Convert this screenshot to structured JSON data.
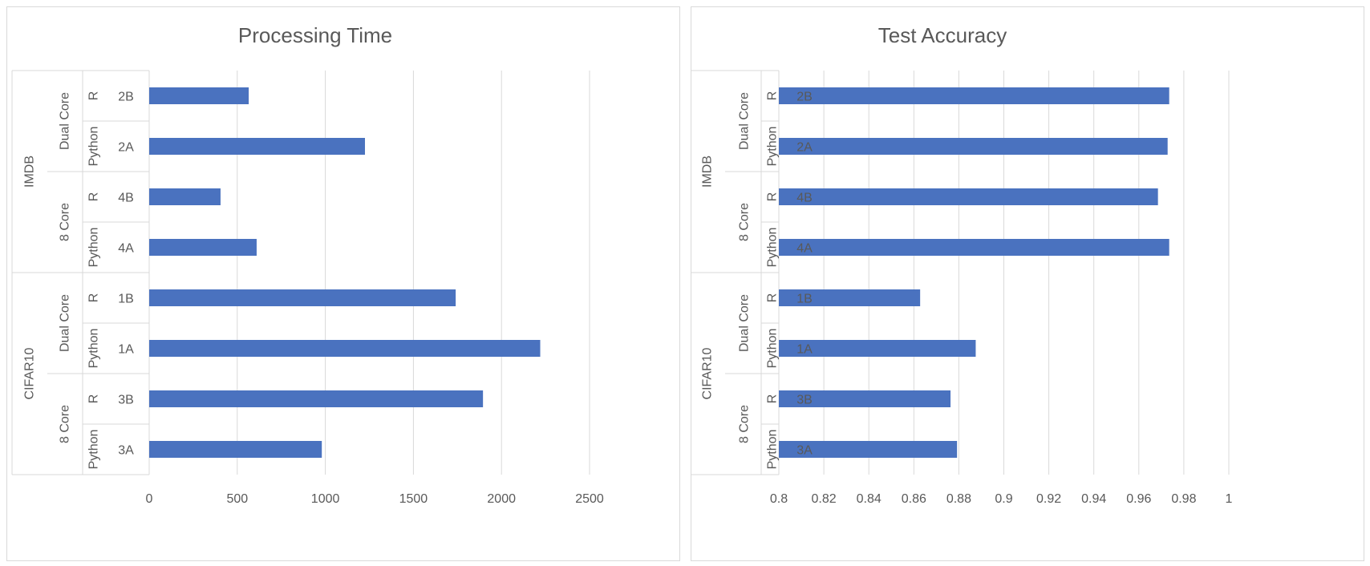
{
  "chart_data": [
    {
      "type": "bar",
      "orientation": "horizontal",
      "title": "Processing Time",
      "xlim": [
        0,
        2500
      ],
      "xticks": [
        "0",
        "500",
        "1000",
        "1500",
        "2000",
        "2500"
      ],
      "grid": true,
      "bar_color": "#4a72bf",
      "categories": [
        "2B",
        "2A",
        "4B",
        "4A",
        "1B",
        "1A",
        "3B",
        "3A"
      ],
      "languages": [
        "R",
        "Python",
        "R",
        "Python",
        "R",
        "Python",
        "R",
        "Python"
      ],
      "cores": [
        "Dual Core",
        "8 Core",
        "Dual Core",
        "8 Core"
      ],
      "datasets": [
        "IMDB",
        "CIFAR10"
      ],
      "values": [
        565,
        1225,
        405,
        610,
        1740,
        2220,
        1895,
        980
      ]
    },
    {
      "type": "bar",
      "orientation": "horizontal",
      "title": "Test Accuracy",
      "xlim": [
        0.8,
        1.0
      ],
      "xticks": [
        "0.8",
        "0.82",
        "0.84",
        "0.86",
        "0.88",
        "0.9",
        "0.92",
        "0.94",
        "0.96",
        "0.98",
        "1"
      ],
      "grid": true,
      "bar_color": "#4a72bf",
      "categories": [
        "2B",
        "2A",
        "4B",
        "4A",
        "1B",
        "1A",
        "3B",
        "3A"
      ],
      "languages": [
        "R",
        "Python",
        "R",
        "Python",
        "R",
        "Python",
        "R",
        "Python"
      ],
      "cores": [
        "Dual Core",
        "8 Core",
        "Dual Core",
        "8 Core"
      ],
      "datasets": [
        "IMDB",
        "CIFAR10"
      ],
      "values": [
        0.9735,
        0.9728,
        0.9685,
        0.9735,
        0.8628,
        0.8875,
        0.8763,
        0.8792
      ]
    }
  ]
}
